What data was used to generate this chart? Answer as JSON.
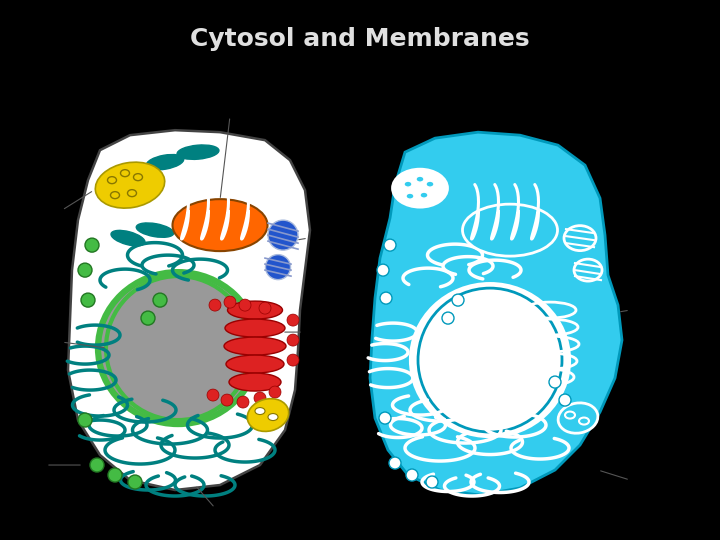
{
  "title": "Cytosol and Membranes",
  "title_color": "#e0e0e0",
  "bg_color": "#000000",
  "main_bg": "#ffffff",
  "cell_b_color": "#33ccee",
  "teal": "#008080",
  "green": "#44bb44",
  "red": "#dd2222",
  "orange": "#ff6600",
  "yellow": "#eecc00",
  "blue": "#2255cc",
  "gray": "#999999",
  "line_color": "#666666",
  "label_fontsize": 7.0,
  "title_fontsize": 18
}
